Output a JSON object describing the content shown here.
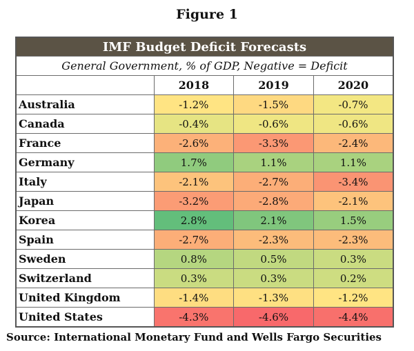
{
  "figure_label": "Figure 1",
  "source": "Source: International Monetary Fund and Wells Fargo Securities",
  "chart_data": {
    "type": "table",
    "title": "IMF Budget Deficit Forecasts",
    "subtitle": "General Government, % of GDP, Negative = Deficit",
    "columns": [
      "2018",
      "2019",
      "2020"
    ],
    "rows": [
      {
        "country": "Australia",
        "values": [
          -1.2,
          -1.5,
          -0.7
        ],
        "labels": [
          "-1.2%",
          "-1.5%",
          "-0.7%"
        ]
      },
      {
        "country": "Canada",
        "values": [
          -0.4,
          -0.6,
          -0.6
        ],
        "labels": [
          "-0.4%",
          "-0.6%",
          "-0.6%"
        ]
      },
      {
        "country": "France",
        "values": [
          -2.6,
          -3.3,
          -2.4
        ],
        "labels": [
          "-2.6%",
          "-3.3%",
          "-2.4%"
        ]
      },
      {
        "country": "Germany",
        "values": [
          1.7,
          1.1,
          1.1
        ],
        "labels": [
          "1.7%",
          "1.1%",
          "1.1%"
        ]
      },
      {
        "country": "Italy",
        "values": [
          -2.1,
          -2.7,
          -3.4
        ],
        "labels": [
          "-2.1%",
          "-2.7%",
          "-3.4%"
        ]
      },
      {
        "country": "Japan",
        "values": [
          -3.2,
          -2.8,
          -2.1
        ],
        "labels": [
          "-3.2%",
          "-2.8%",
          "-2.1%"
        ]
      },
      {
        "country": "Korea",
        "values": [
          2.8,
          2.1,
          1.5
        ],
        "labels": [
          "2.8%",
          "2.1%",
          "1.5%"
        ]
      },
      {
        "country": "Spain",
        "values": [
          -2.7,
          -2.3,
          -2.3
        ],
        "labels": [
          "-2.7%",
          "-2.3%",
          "-2.3%"
        ]
      },
      {
        "country": "Sweden",
        "values": [
          0.8,
          0.5,
          0.3
        ],
        "labels": [
          "0.8%",
          "0.5%",
          "0.3%"
        ]
      },
      {
        "country": "Switzerland",
        "values": [
          0.3,
          0.3,
          0.2
        ],
        "labels": [
          "0.3%",
          "0.3%",
          "0.2%"
        ]
      },
      {
        "country": "United Kingdom",
        "values": [
          -1.4,
          -1.3,
          -1.2
        ],
        "labels": [
          "-1.4%",
          "-1.3%",
          "-1.2%"
        ]
      },
      {
        "country": "United States",
        "values": [
          -4.3,
          -4.6,
          -4.4
        ],
        "labels": [
          "-4.3%",
          "-4.6%",
          "-4.4%"
        ]
      }
    ],
    "color_scale": {
      "low": "#f8696b",
      "mid": "#ffeb84",
      "high": "#63be7b",
      "min": -4.6,
      "max": 2.8
    }
  }
}
